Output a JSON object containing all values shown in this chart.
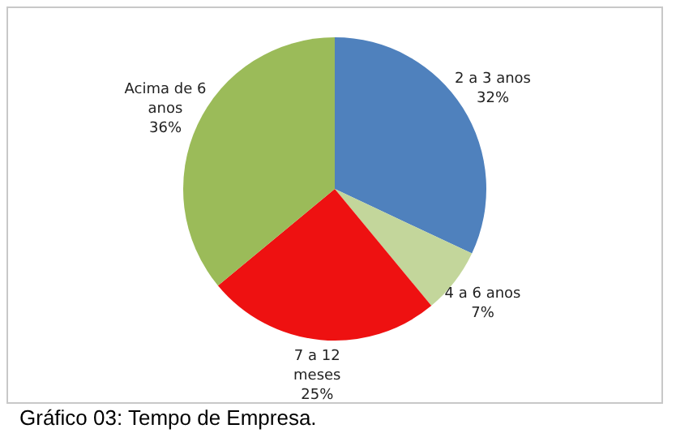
{
  "chart_data": {
    "type": "pie",
    "categories": [
      "2 a 3 anos",
      "4 a 6 anos",
      "7 a 12 meses",
      "Acima de 6 anos"
    ],
    "values": [
      32,
      7,
      25,
      36
    ],
    "value_labels": [
      "32%",
      "7%",
      "25%",
      "36%"
    ],
    "colors": [
      "#4f81bd",
      "#c3d69b",
      "#ee1111",
      "#9bbb59"
    ],
    "legend": false,
    "annotations": [
      "Gráfico 03: Tempo de Empresa."
    ]
  }
}
